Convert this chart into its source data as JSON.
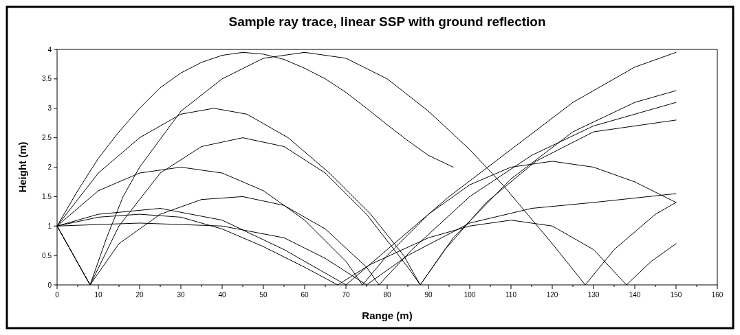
{
  "chart_data": {
    "type": "line",
    "title": "Sample ray trace, linear SSP with ground reflection",
    "xlabel": "Range (m)",
    "ylabel": "Height (m)",
    "xlim": [
      0,
      160
    ],
    "ylim": [
      0,
      4
    ],
    "xticks": [
      0,
      {
        "value": 5,
        "label": null
      },
      10,
      {
        "value": 15,
        "label": null
      },
      20,
      {
        "value": 25,
        "label": null
      },
      30,
      {
        "value": 35,
        "label": null
      },
      40,
      {
        "value": 45,
        "label": null
      },
      50,
      {
        "value": 55,
        "label": null
      },
      60,
      {
        "value": 65,
        "label": null
      },
      70,
      {
        "value": 75,
        "label": null
      },
      80,
      {
        "value": 85,
        "label": null
      },
      90,
      {
        "value": 95,
        "label": null
      },
      100,
      {
        "value": 105,
        "label": null
      },
      110,
      {
        "value": 115,
        "label": null
      },
      120,
      {
        "value": 125,
        "label": null
      },
      130,
      {
        "value": 135,
        "label": null
      },
      140,
      {
        "value": 145,
        "label": null
      },
      150,
      {
        "value": 155,
        "label": null
      },
      160
    ],
    "yticks": [
      0,
      0.5,
      1,
      1.5,
      2,
      2.5,
      3,
      3.5,
      4
    ],
    "grid": false,
    "marker": "none",
    "line_style": "solid",
    "series": [
      {
        "color": "#000000",
        "x": [
          0,
          5,
          10,
          15,
          20,
          25,
          30,
          35,
          40,
          45,
          50,
          55,
          60,
          65,
          70,
          75,
          80,
          85,
          90,
          96
        ],
        "values": [
          1,
          1.6,
          2.15,
          2.6,
          3.0,
          3.35,
          3.6,
          3.78,
          3.9,
          3.95,
          3.92,
          3.83,
          3.68,
          3.5,
          3.27,
          3.0,
          2.72,
          2.45,
          2.2,
          2.0
        ]
      },
      {
        "color": "#000000",
        "x": [
          0,
          10,
          20,
          30,
          38,
          46,
          56,
          66,
          76,
          84,
          88,
          94,
          104,
          116,
          130,
          150
        ],
        "values": [
          1,
          1.9,
          2.5,
          2.9,
          3.0,
          2.9,
          2.5,
          1.9,
          1.2,
          0.5,
          0,
          0.6,
          1.4,
          2.1,
          2.6,
          2.8
        ]
      },
      {
        "color": "#000000",
        "x": [
          0,
          10,
          20,
          30,
          40,
          50,
          60,
          70,
          74,
          80,
          90,
          100,
          110,
          120,
          130,
          140,
          150
        ],
        "values": [
          1,
          1.6,
          1.9,
          2.0,
          1.9,
          1.6,
          1.1,
          0.4,
          0,
          0.5,
          1.2,
          1.7,
          2.0,
          2.1,
          2.0,
          1.75,
          1.4
        ]
      },
      {
        "color": "#000000",
        "x": [
          0,
          10,
          20,
          30,
          40,
          50,
          60,
          68,
          76,
          90,
          100,
          110,
          120,
          130,
          138,
          144,
          150
        ],
        "values": [
          1,
          1.15,
          1.2,
          1.15,
          0.95,
          0.65,
          0.3,
          0,
          0.35,
          0.8,
          1.0,
          1.1,
          1.0,
          0.6,
          0,
          0.4,
          0.7
        ]
      },
      {
        "color": "#000000",
        "x": [
          0,
          4,
          8,
          12,
          16,
          20,
          30,
          40,
          50,
          60,
          70,
          80,
          90,
          100,
          108,
          120,
          128,
          135,
          145,
          150
        ],
        "values": [
          1,
          0.5,
          0,
          0.8,
          1.5,
          2.0,
          2.95,
          3.5,
          3.85,
          3.95,
          3.85,
          3.5,
          2.95,
          2.3,
          1.7,
          0.7,
          0,
          0.6,
          1.2,
          1.4
        ]
      },
      {
        "color": "#000000",
        "x": [
          0,
          8,
          15,
          25,
          35,
          45,
          55,
          65,
          75,
          85,
          88,
          96,
          110,
          125,
          140,
          150
        ],
        "values": [
          1,
          0,
          1.0,
          1.9,
          2.35,
          2.5,
          2.35,
          1.9,
          1.2,
          0.3,
          0,
          0.8,
          1.8,
          2.6,
          3.1,
          3.3
        ]
      },
      {
        "color": "#000000",
        "x": [
          0,
          8,
          15,
          25,
          35,
          45,
          55,
          65,
          75,
          78,
          86,
          100,
          115,
          130,
          150
        ],
        "values": [
          1,
          0,
          0.7,
          1.2,
          1.45,
          1.5,
          1.35,
          0.95,
          0.3,
          0,
          0.6,
          1.5,
          2.2,
          2.7,
          3.1
        ]
      },
      {
        "color": "#000000",
        "x": [
          0,
          10,
          25,
          40,
          55,
          70,
          80,
          95,
          110,
          125,
          140,
          150
        ],
        "values": [
          1,
          1.2,
          1.3,
          1.1,
          0.6,
          0,
          0.6,
          1.5,
          2.3,
          3.1,
          3.7,
          3.95
        ]
      },
      {
        "color": "#000000",
        "x": [
          0,
          20,
          40,
          55,
          65,
          75,
          85,
          100,
          115,
          130,
          150
        ],
        "values": [
          1,
          1.05,
          1.0,
          0.8,
          0.45,
          0,
          0.5,
          1.05,
          1.3,
          1.4,
          1.55
        ]
      }
    ]
  }
}
